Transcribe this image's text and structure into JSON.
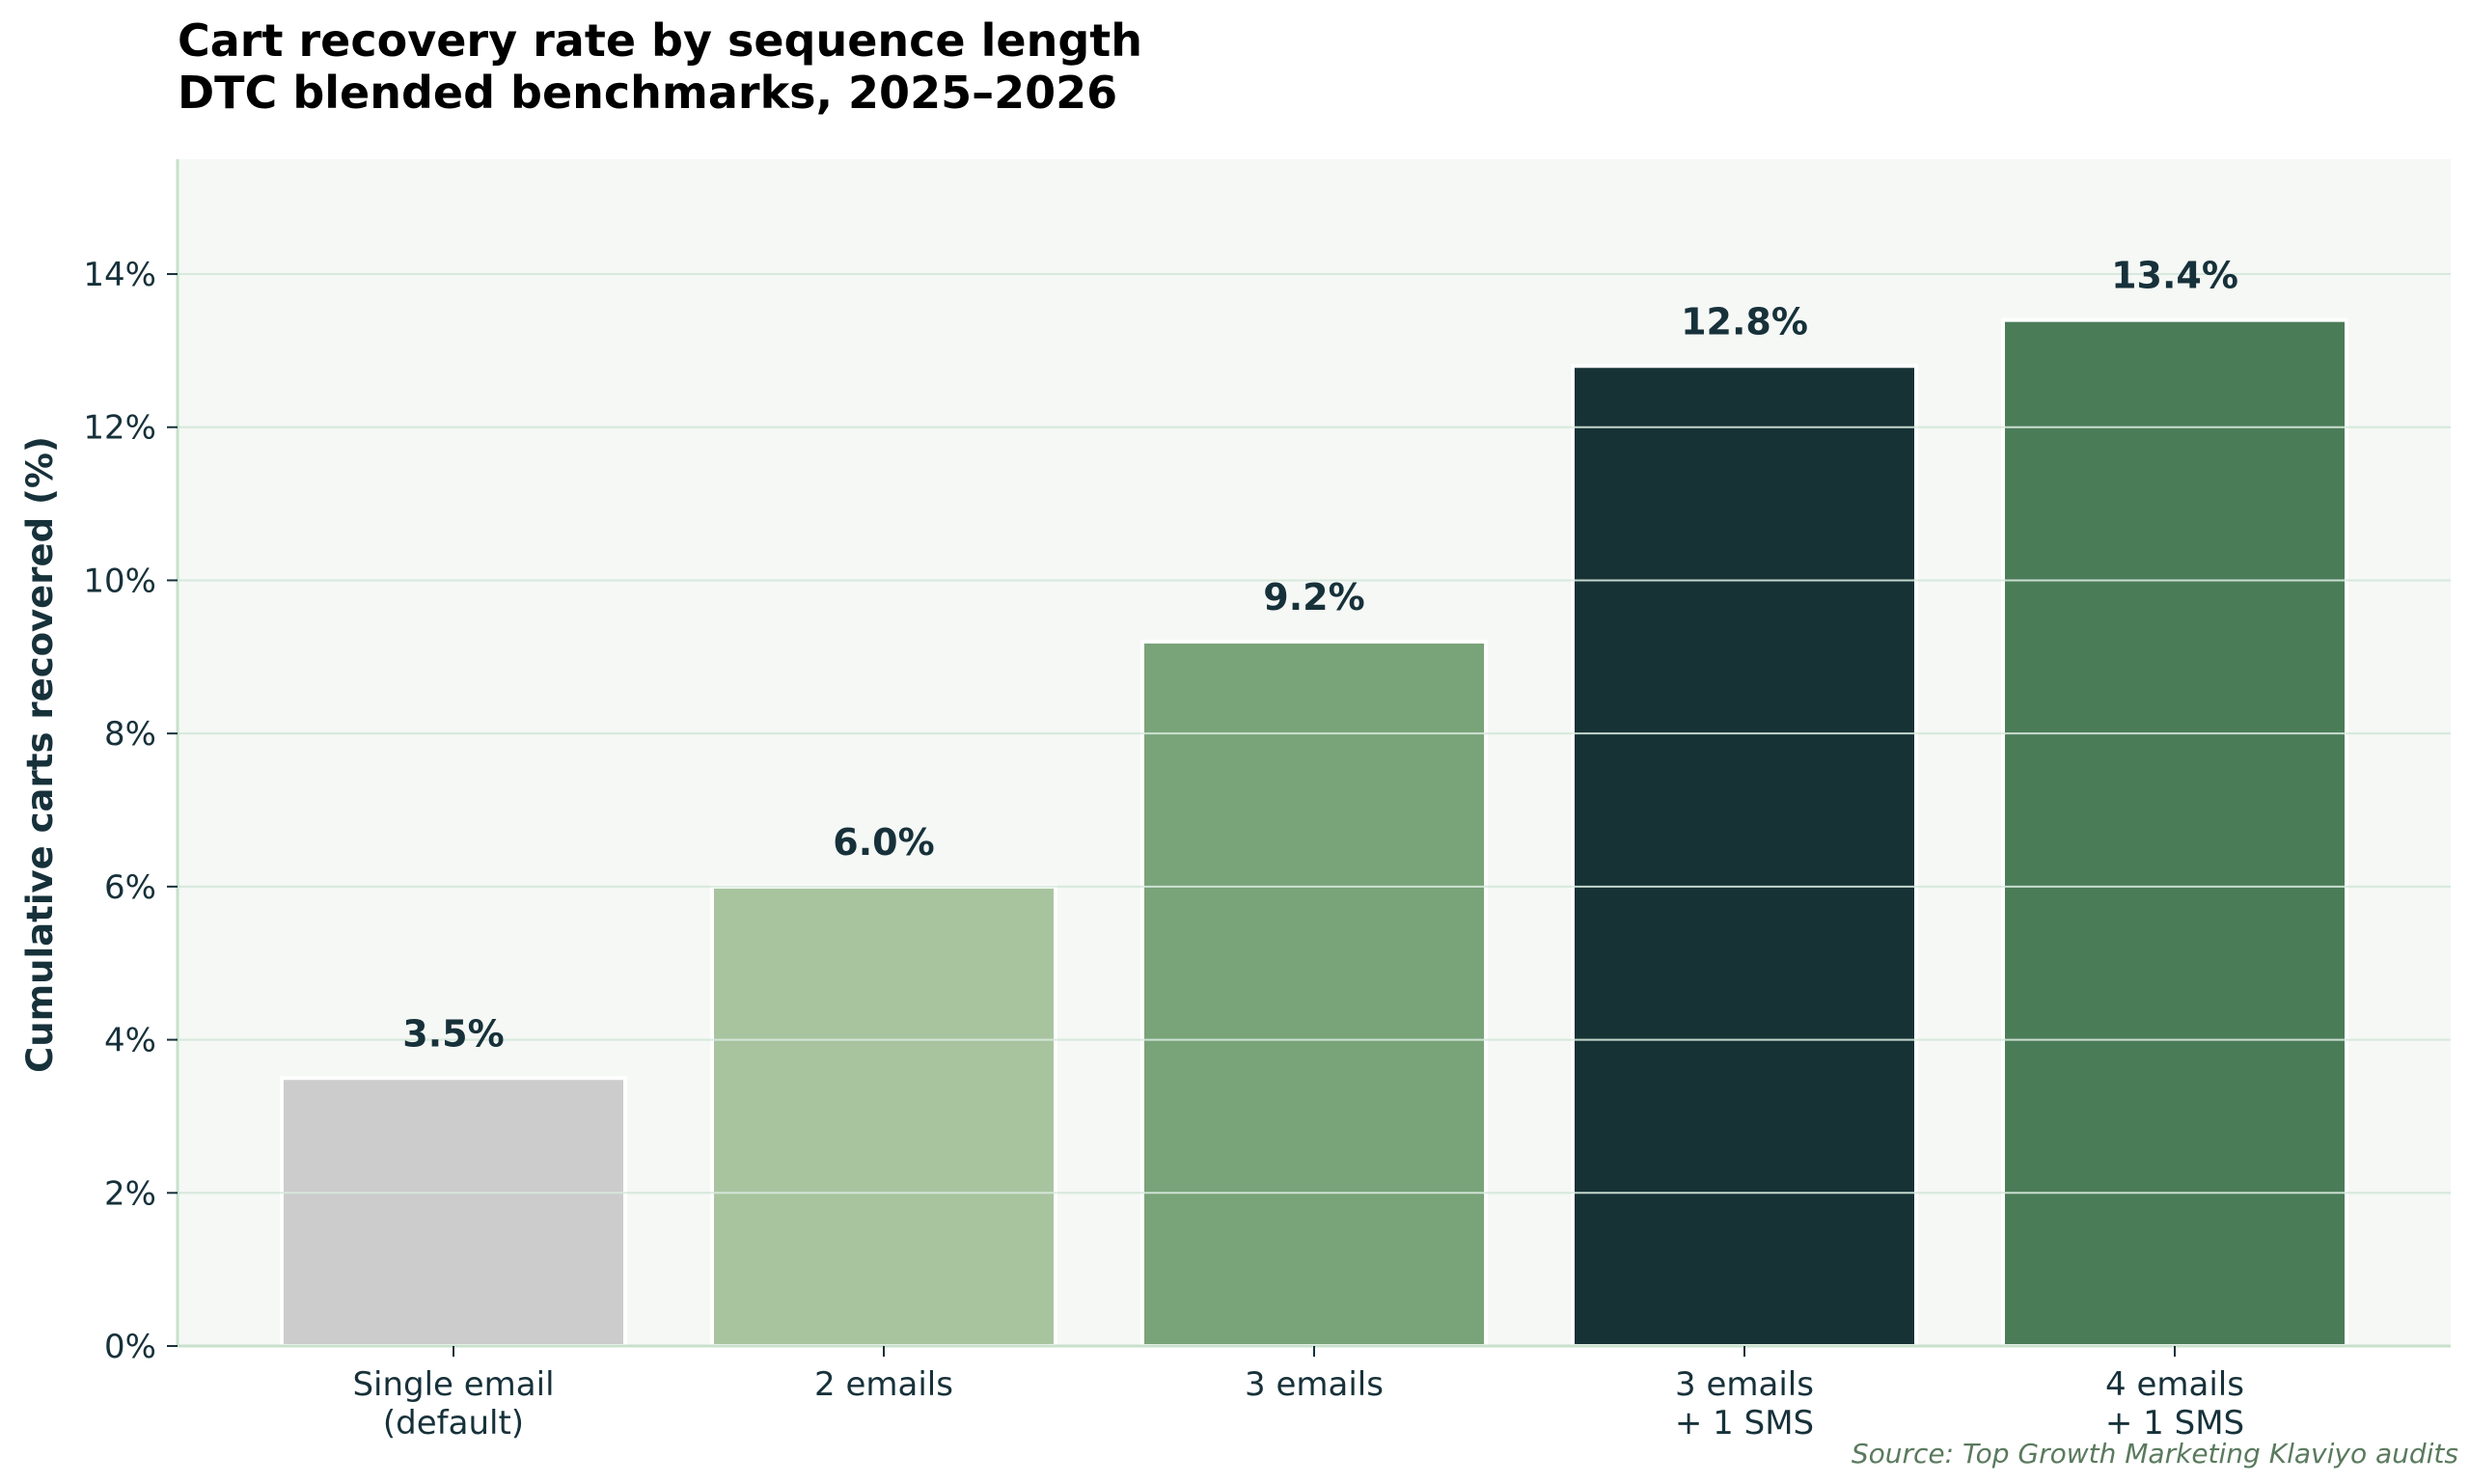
{
  "chart_data": {
    "type": "bar",
    "title": [
      "Cart recovery rate by sequence length",
      "DTC blended benchmarks, 2025–2026"
    ],
    "xlabel": "",
    "ylabel": "Cumulative carts recovered (%)",
    "categories": [
      [
        "Single email",
        "(default)"
      ],
      [
        "2 emails"
      ],
      [
        "3 emails"
      ],
      [
        "3 emails",
        "+ 1 SMS"
      ],
      [
        "4 emails",
        "+ 1 SMS"
      ]
    ],
    "values": [
      3.5,
      6.0,
      9.2,
      12.8,
      13.4
    ],
    "value_labels": [
      "3.5%",
      "6.0%",
      "9.2%",
      "12.8%",
      "13.4%"
    ],
    "colors": [
      "#cccccc",
      "#a8c49f",
      "#79a379",
      "#173235",
      "#4b7c58"
    ],
    "ylim": [
      0,
      15.5
    ],
    "yticks": [
      0,
      2,
      4,
      6,
      8,
      10,
      12,
      14
    ],
    "ytick_labels": [
      "0%",
      "2%",
      "4%",
      "6%",
      "8%",
      "10%",
      "12%",
      "14%"
    ],
    "grid": true,
    "grid_color": "#d7e9dd",
    "plot_background": "#f5f8f5",
    "axis_color": "#c8e0cc",
    "source": "Source: Top Growth Marketing Klaviyo audits"
  }
}
